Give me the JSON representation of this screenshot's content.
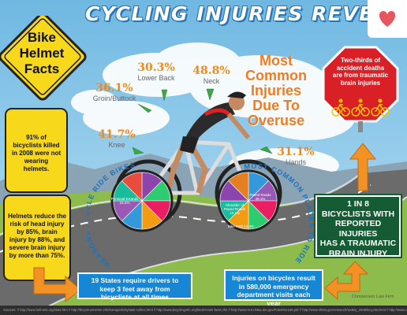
{
  "header": {
    "title": "CYCLING INJURIES REVEAL",
    "heart_icon": "heart-icon"
  },
  "helmet_sign": {
    "title_lines": [
      "Bike",
      "Helmet",
      "Facts"
    ],
    "fact1": "91% of bicyclists killed in 2008 were not wearing helmets.",
    "fact2": "Helmets reduce the risk of head injury by 85%, brain injury by 88%, and severe brain injury by more than 75%."
  },
  "overuse_injuries": [
    {
      "pct": "36.1%",
      "label": "Groin/Buttock"
    },
    {
      "pct": "30.3%",
      "label": "Lower Back"
    },
    {
      "pct": "48.8%",
      "label": "Neck"
    },
    {
      "pct": "41.7%",
      "label": "Knee"
    },
    {
      "pct": "31.1%",
      "label": "Hands"
    }
  ],
  "headline": {
    "lines": [
      "Most",
      "Common",
      "Injuries",
      "Due To",
      "Overuse"
    ]
  },
  "stop_sign": {
    "text": "Two-thirds of accident deaths are from traumatic brain injuries"
  },
  "wheels": {
    "left_arc": "REASONS PEOPLE RIDE BIKES",
    "right_arc": "MOST COMMON PLACES TO RIDE",
    "left_slices": [
      "Personal Errands 23.2%",
      "Recreation",
      "Exercise",
      "Visit"
    ],
    "right_slices": [
      "Paved Roads 48.1%",
      "Shoulder of Paved Roads 13.1%",
      "Bike Path 13.3%",
      "Sidewalks"
    ],
    "left_colors": [
      "#8e44ad",
      "#2ecc71",
      "#e91e63",
      "#f39c12",
      "#3498db",
      "#9b59b6",
      "#1abc9c",
      "#e74c3c"
    ],
    "right_colors": [
      "#3498db",
      "#9b59b6",
      "#e91e63",
      "#2ecc71",
      "#f39c12",
      "#1abc9c",
      "#8e44ad",
      "#e67e22"
    ]
  },
  "green_box": {
    "lines": [
      "1 IN 8",
      "BICYCLISTS WITH",
      "REPORTED",
      "INJURIES",
      "HAS A TRAUMATIC",
      "BRAIN INJURY"
    ]
  },
  "blue_box_left": {
    "text": "19 States require drivers to keep 3 feet away from bicyclists at all times"
  },
  "blue_box_right": {
    "text": "Injuries on bicycles result in 580,000 emergency department visits each year"
  },
  "footer": {
    "text": "Sources: // http://www.helmets.org/stats.htm // http://bicycleuniverse.info/transport/citystats-collect.html // http://www.bicyclinginfo.org/facts/crash-facts.cfm // http://www-nrd.nhtsa.dot.gov/Pubs/811156.pdf // http://www.nhtsa.gov/research/Safety_2008/bicyclist.html // http://www.cdc.gov/nchs/data/hus/hus11.pdf"
  },
  "logo": {
    "text": "Christensen Law Firm"
  }
}
